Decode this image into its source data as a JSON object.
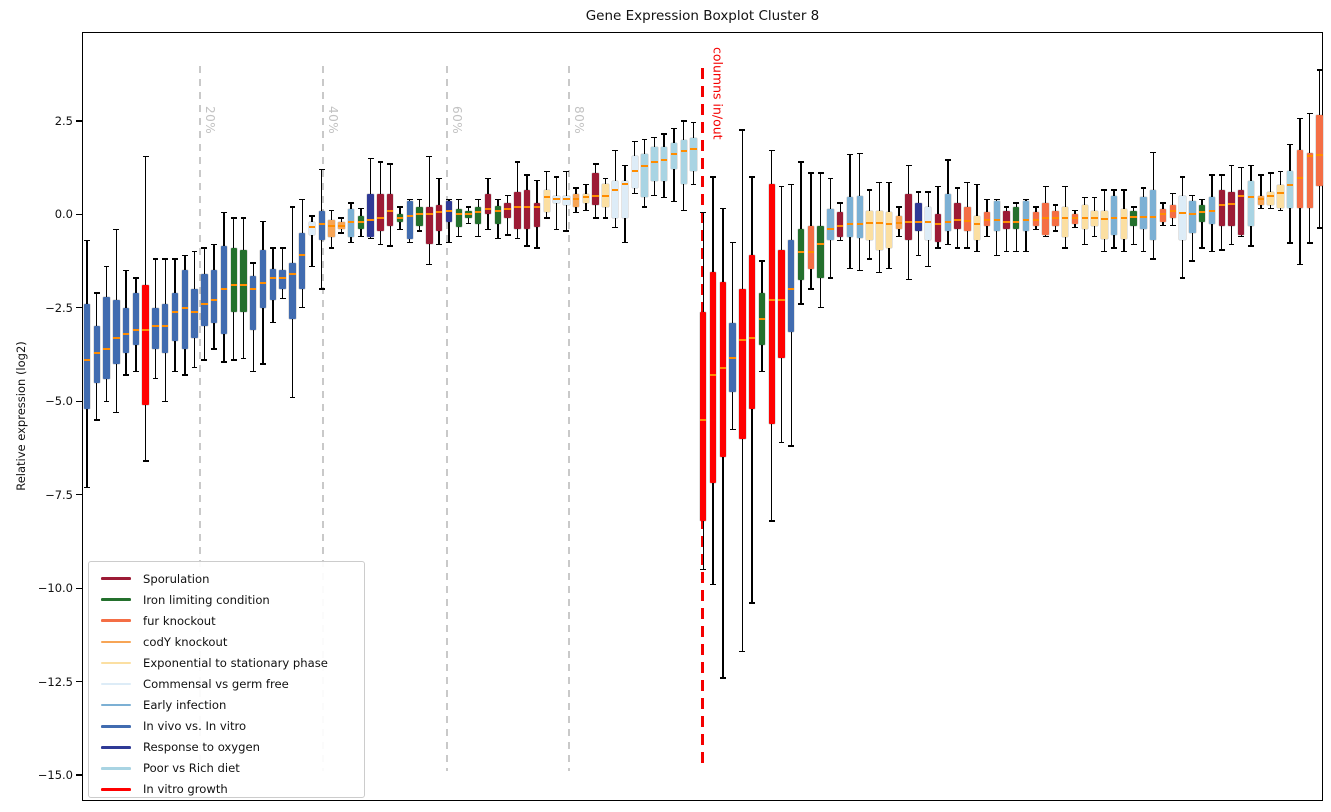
{
  "title": "Gene Expression Boxplot Cluster 8",
  "y_axis": {
    "label": "Relative expression (log2)",
    "ticks": [
      {
        "text": "2.5",
        "value": 2.5
      },
      {
        "text": "0.0",
        "value": 0.0
      },
      {
        "text": "−2.5",
        "value": -2.5
      },
      {
        "text": "−5.0",
        "value": -5.0
      },
      {
        "text": "−7.5",
        "value": -7.5
      },
      {
        "text": "−10.0",
        "value": -10.0
      },
      {
        "text": "−12.5",
        "value": -12.5
      },
      {
        "text": "−15.0",
        "value": -15.0
      }
    ],
    "min": -15.72,
    "max": 4.85
  },
  "x_axis": {
    "tick_labels": "none"
  },
  "annotations": {
    "percent_lines": [
      {
        "label": "20%",
        "x": 117
      },
      {
        "label": "40%",
        "x": 240
      },
      {
        "label": "60%",
        "x": 364
      },
      {
        "label": "80%",
        "x": 486
      }
    ],
    "cutoff_line": {
      "label": "columns in/out",
      "x": 619.5
    }
  },
  "colors": {
    "SP": "#9c1b35",
    "IR": "#24702d",
    "FU": "#f46e45",
    "CO": "#f7a556",
    "EX": "#fbdfa2",
    "CG": "#ddecf7",
    "EI": "#7cb0d4",
    "IV": "#416cb0",
    "OX": "#2f3a96",
    "PD": "#a9d4e3",
    "VG": "#ff0000",
    "median": "#ff8c00",
    "whisker": "#000000",
    "gray_line": "#c9c9c9",
    "red_line": "#f40000"
  },
  "legend": {
    "items": [
      {
        "id": "SP",
        "label": "Sporulation"
      },
      {
        "id": "IR",
        "label": "Iron limiting condition"
      },
      {
        "id": "FU",
        "label": "fur knockout"
      },
      {
        "id": "CO",
        "label": "codY knockout"
      },
      {
        "id": "EX",
        "label": "Exponential to stationary phase"
      },
      {
        "id": "CG",
        "label": "Commensal vs germ free"
      },
      {
        "id": "EI",
        "label": "Early infection"
      },
      {
        "id": "IV",
        "label": "In vivo vs. In vitro"
      },
      {
        "id": "OX",
        "label": "Response to oxygen"
      },
      {
        "id": "PD",
        "label": "Poor vs Rich diet"
      },
      {
        "id": "VG",
        "label": "In vitro growth"
      }
    ]
  },
  "chart_data": {
    "type": "boxplot",
    "title": "Gene Expression Boxplot Cluster 8",
    "ylabel": "Relative expression (log2)",
    "ylim": [
      -15.72,
      4.85
    ],
    "grid": false,
    "legend_position": "lower left",
    "box_format": [
      "category",
      "whisker_low",
      "q1",
      "median",
      "q3",
      "whisker_high"
    ],
    "boxes": [
      [
        "IV",
        -7.3,
        -5.2,
        -3.9,
        -2.4,
        -0.7
      ],
      [
        "IV",
        -5.5,
        -4.5,
        -3.7,
        -3.0,
        -2.1
      ],
      [
        "IV",
        -5.0,
        -4.4,
        -3.6,
        -2.2,
        -1.4
      ],
      [
        "IV",
        -5.3,
        -4.0,
        -3.3,
        -2.3,
        -0.4
      ],
      [
        "IV",
        -4.3,
        -3.7,
        -3.2,
        -2.5,
        -1.5
      ],
      [
        "IV",
        -4.2,
        -3.5,
        -3.1,
        -2.1,
        -1.7
      ],
      [
        "VG",
        -6.6,
        -5.1,
        -3.1,
        -1.9,
        1.55
      ],
      [
        "IV",
        -4.4,
        -3.6,
        -3.0,
        -2.5,
        -1.2
      ],
      [
        "IV",
        -5.0,
        -3.7,
        -3.0,
        -2.4,
        -1.2
      ],
      [
        "IV",
        -4.2,
        -3.4,
        -2.6,
        -2.1,
        -1.2
      ],
      [
        "IV",
        -4.3,
        -3.6,
        -2.5,
        -1.5,
        -1.1
      ],
      [
        "IV",
        -4.1,
        -3.3,
        -2.6,
        -2.0,
        -1.0
      ],
      [
        "IV",
        -3.9,
        -3.0,
        -2.4,
        -1.6,
        -0.9
      ],
      [
        "IV",
        -3.6,
        -2.9,
        -2.3,
        -1.5,
        -0.8
      ],
      [
        "IV",
        -3.95,
        -3.2,
        -2.0,
        -0.85,
        0.05
      ],
      [
        "IR",
        -3.9,
        -2.6,
        -1.9,
        -0.9,
        -0.1
      ],
      [
        "IR",
        -3.85,
        -2.6,
        -1.9,
        -0.95,
        -0.1
      ],
      [
        "IV",
        -4.2,
        -3.1,
        -2.0,
        -1.65,
        -1.3
      ],
      [
        "IV",
        -4.0,
        -2.5,
        -1.85,
        -0.95,
        -0.2
      ],
      [
        "IV",
        -2.9,
        -2.3,
        -1.7,
        -1.45,
        -0.9
      ],
      [
        "IV",
        -2.25,
        -2.0,
        -1.7,
        -1.5,
        -0.9
      ],
      [
        "IV",
        -4.9,
        -2.8,
        -1.6,
        -1.3,
        0.2
      ],
      [
        "IV",
        -2.5,
        -2.0,
        -1.1,
        -0.5,
        0.4
      ],
      [
        "CG",
        -1.4,
        -0.55,
        -0.35,
        -0.2,
        -0.05
      ],
      [
        "IV",
        -2.0,
        -0.7,
        -0.27,
        0.1,
        1.2
      ],
      [
        "CO",
        -0.9,
        -0.6,
        -0.3,
        -0.15,
        0.1
      ],
      [
        "CO",
        -0.5,
        -0.4,
        -0.3,
        -0.2,
        -0.1
      ],
      [
        "EI",
        -0.75,
        -0.6,
        -0.2,
        0.15,
        0.3
      ],
      [
        "IR",
        -0.6,
        -0.4,
        -0.2,
        -0.05,
        0.15
      ],
      [
        "OX",
        -0.65,
        -0.6,
        -0.15,
        0.55,
        1.5
      ],
      [
        "SP",
        -0.8,
        -0.45,
        -0.1,
        0.55,
        1.4
      ],
      [
        "SP",
        -0.85,
        -0.3,
        0.1,
        0.55,
        1.35
      ],
      [
        "IR",
        -0.4,
        -0.2,
        -0.1,
        0.0,
        0.2
      ],
      [
        "IV",
        -0.75,
        -0.65,
        -0.05,
        0.35,
        0.4
      ],
      [
        "IR",
        -0.45,
        -0.3,
        0.0,
        0.2,
        0.4
      ],
      [
        "SP",
        -1.35,
        -0.8,
        0.0,
        0.2,
        1.55
      ],
      [
        "SP",
        -0.8,
        -0.45,
        0.05,
        0.25,
        0.95
      ],
      [
        "OX",
        -0.75,
        -0.2,
        0.1,
        0.35,
        0.4
      ],
      [
        "IR",
        -0.6,
        -0.35,
        0.0,
        0.15,
        0.4
      ],
      [
        "IR",
        -0.25,
        -0.1,
        0.0,
        0.1,
        0.2
      ],
      [
        "IR",
        -0.6,
        -0.25,
        0.05,
        0.2,
        0.4
      ],
      [
        "SP",
        -0.4,
        0.0,
        0.15,
        0.55,
        0.95
      ],
      [
        "IR",
        -0.65,
        -0.25,
        0.1,
        0.22,
        0.4
      ],
      [
        "SP",
        -0.55,
        -0.1,
        0.15,
        0.3,
        0.5
      ],
      [
        "SP",
        -0.65,
        -0.4,
        0.2,
        0.6,
        1.4
      ],
      [
        "SP",
        -0.85,
        -0.4,
        0.2,
        0.65,
        1.05
      ],
      [
        "SP",
        -0.9,
        -0.35,
        0.2,
        0.3,
        0.9
      ],
      [
        "EX",
        -0.1,
        0.05,
        0.45,
        0.65,
        1.15
      ],
      [
        "CG",
        -0.4,
        0.3,
        0.4,
        0.5,
        1.0
      ],
      [
        "CG",
        -0.45,
        0.25,
        0.4,
        0.5,
        1.15
      ],
      [
        "CO",
        0.05,
        0.2,
        0.4,
        0.55,
        0.7
      ],
      [
        "EX",
        0.1,
        0.3,
        0.45,
        0.55,
        0.8
      ],
      [
        "SP",
        -0.1,
        0.25,
        0.5,
        1.1,
        1.35
      ],
      [
        "EX",
        -0.1,
        0.2,
        0.5,
        0.8,
        0.95
      ],
      [
        "CG",
        -0.35,
        -0.1,
        0.65,
        0.9,
        1.7
      ],
      [
        "CG",
        -0.75,
        -0.1,
        0.8,
        0.9,
        1.3
      ],
      [
        "CG",
        0.55,
        0.7,
        1.15,
        1.55,
        1.95
      ],
      [
        "PD",
        0.2,
        0.45,
        1.3,
        1.6,
        2.0
      ],
      [
        "PD",
        0.5,
        0.9,
        1.4,
        1.8,
        2.05
      ],
      [
        "PD",
        0.45,
        0.9,
        1.45,
        1.8,
        2.15
      ],
      [
        "PD",
        0.35,
        1.2,
        1.6,
        1.9,
        2.3
      ],
      [
        "PD",
        0.1,
        0.8,
        1.7,
        2.0,
        2.5
      ],
      [
        "PD",
        0.8,
        1.15,
        1.75,
        2.05,
        2.45
      ],
      [
        "VG",
        -9.5,
        -8.2,
        -5.5,
        -2.6,
        0.05
      ],
      [
        "VG",
        -9.9,
        -7.2,
        -4.3,
        -1.55,
        1.0
      ],
      [
        "VG",
        -12.4,
        -6.5,
        -4.1,
        -1.8,
        0.15
      ],
      [
        "IV",
        -5.75,
        -4.75,
        -3.85,
        -2.9,
        -0.75
      ],
      [
        "VG",
        -11.7,
        -6.0,
        -3.35,
        -2.0,
        2.25
      ],
      [
        "VG",
        -10.4,
        -5.2,
        -3.3,
        -1.1,
        1.0
      ],
      [
        "IR",
        -4.2,
        -3.5,
        -2.8,
        -2.1,
        -1.25
      ],
      [
        "VG",
        -8.2,
        -5.6,
        -2.3,
        0.8,
        1.7
      ],
      [
        "VG",
        -6.1,
        -3.85,
        -2.3,
        -0.95,
        0.75
      ],
      [
        "IV",
        -6.2,
        -3.15,
        -2.0,
        -0.7,
        0.8
      ],
      [
        "IR",
        -2.4,
        -1.75,
        -1.0,
        -0.4,
        1.4
      ],
      [
        "FU",
        -2.0,
        -1.45,
        -1.0,
        -0.3,
        1.1
      ],
      [
        "IR",
        -2.5,
        -1.7,
        -0.8,
        -0.3,
        1.1
      ],
      [
        "EI",
        -1.7,
        -0.7,
        -0.4,
        0.15,
        0.95
      ],
      [
        "SP",
        -0.7,
        -0.6,
        -0.3,
        0.05,
        0.3
      ],
      [
        "EI",
        -1.45,
        -0.6,
        -0.27,
        0.45,
        1.6
      ],
      [
        "EI",
        -1.5,
        -0.63,
        -0.27,
        0.48,
        1.62
      ],
      [
        "EX",
        -1.2,
        -0.7,
        -0.23,
        0.1,
        0.65
      ],
      [
        "EX",
        -1.55,
        -0.95,
        -0.23,
        0.1,
        0.85
      ],
      [
        "EX",
        -1.45,
        -0.9,
        -0.25,
        0.05,
        0.85
      ],
      [
        "CO",
        -0.6,
        -0.4,
        -0.23,
        -0.05,
        0.2
      ],
      [
        "SP",
        -1.75,
        -0.7,
        -0.2,
        0.55,
        1.3
      ],
      [
        "OX",
        -1.1,
        -0.45,
        -0.2,
        0.3,
        0.6
      ],
      [
        "CG",
        -1.4,
        -0.7,
        -0.2,
        0.2,
        0.6
      ],
      [
        "SP",
        -0.9,
        -0.75,
        -0.27,
        0.0,
        0.75
      ],
      [
        "EI",
        -0.8,
        -0.45,
        -0.2,
        0.55,
        1.45
      ],
      [
        "SP",
        -0.9,
        -0.4,
        -0.15,
        0.3,
        0.7
      ],
      [
        "FU",
        -0.9,
        -0.45,
        -0.17,
        0.2,
        0.85
      ],
      [
        "EX",
        -1.0,
        -0.7,
        -0.25,
        -0.05,
        0.8
      ],
      [
        "FU",
        -0.6,
        -0.3,
        -0.15,
        0.05,
        0.4
      ],
      [
        "EI",
        -1.1,
        -0.45,
        -0.15,
        0.35,
        0.4
      ],
      [
        "SP",
        -1.0,
        -0.4,
        -0.2,
        0.1,
        0.2
      ],
      [
        "IR",
        -1.0,
        -0.4,
        -0.2,
        0.2,
        0.3
      ],
      [
        "EI",
        -1.0,
        -0.45,
        -0.15,
        0.35,
        0.4
      ],
      [
        "FU",
        -0.4,
        -0.3,
        -0.15,
        0.05,
        0.2
      ],
      [
        "FU",
        -0.6,
        -0.55,
        -0.1,
        0.3,
        0.75
      ],
      [
        "FU",
        -0.45,
        -0.3,
        -0.1,
        0.1,
        0.25
      ],
      [
        "EX",
        -0.9,
        -0.6,
        -0.1,
        0.2,
        0.75
      ],
      [
        "FU",
        -0.35,
        -0.25,
        -0.1,
        0.0,
        0.1
      ],
      [
        "EX",
        -0.8,
        -0.4,
        -0.1,
        0.25,
        0.45
      ],
      [
        "EX",
        -0.6,
        -0.3,
        -0.1,
        0.1,
        0.45
      ],
      [
        "EX",
        -1.0,
        -0.65,
        -0.12,
        0.1,
        0.65
      ],
      [
        "EI",
        -0.9,
        -0.55,
        -0.1,
        0.5,
        0.65
      ],
      [
        "EX",
        -1.0,
        -0.65,
        -0.1,
        0.15,
        0.65
      ],
      [
        "IR",
        -0.8,
        -0.3,
        -0.08,
        0.1,
        0.2
      ],
      [
        "EI",
        -1.0,
        -0.4,
        -0.08,
        0.45,
        0.7
      ],
      [
        "EI",
        -1.2,
        -0.7,
        -0.07,
        0.65,
        1.65
      ],
      [
        "FU",
        -0.3,
        -0.2,
        0.0,
        0.15,
        0.3
      ],
      [
        "FU",
        -0.3,
        -0.1,
        0.1,
        0.25,
        0.55
      ],
      [
        "CG",
        -1.7,
        -0.7,
        0.03,
        0.5,
        1.0
      ],
      [
        "EI",
        -1.25,
        -0.5,
        0.0,
        0.35,
        0.5
      ],
      [
        "IR",
        -0.9,
        -0.2,
        0.05,
        0.25,
        0.4
      ],
      [
        "EI",
        -1.0,
        -0.25,
        0.1,
        0.45,
        1.05
      ],
      [
        "SP",
        -0.95,
        -0.3,
        0.25,
        0.65,
        1.05
      ],
      [
        "SP",
        -0.8,
        -0.3,
        0.27,
        0.6,
        1.3
      ],
      [
        "SP",
        -0.6,
        -0.55,
        0.48,
        0.65,
        1.25
      ],
      [
        "PD",
        -0.85,
        -0.3,
        0.45,
        0.9,
        1.3
      ],
      [
        "CO",
        0.15,
        0.25,
        0.4,
        0.5,
        1.05
      ],
      [
        "EX",
        0.15,
        0.25,
        0.5,
        0.6,
        1.1
      ],
      [
        "EX",
        0.1,
        0.17,
        0.57,
        0.79,
        1.15
      ],
      [
        "PD",
        -0.77,
        0.17,
        0.79,
        1.15,
        1.86
      ],
      [
        "FU",
        -1.35,
        0.17,
        0.97,
        1.72,
        2.57
      ],
      [
        "FU",
        -0.77,
        0.17,
        1.55,
        1.63,
        2.7
      ],
      [
        "FU",
        -0.37,
        0.75,
        1.59,
        2.66,
        3.86
      ]
    ]
  }
}
